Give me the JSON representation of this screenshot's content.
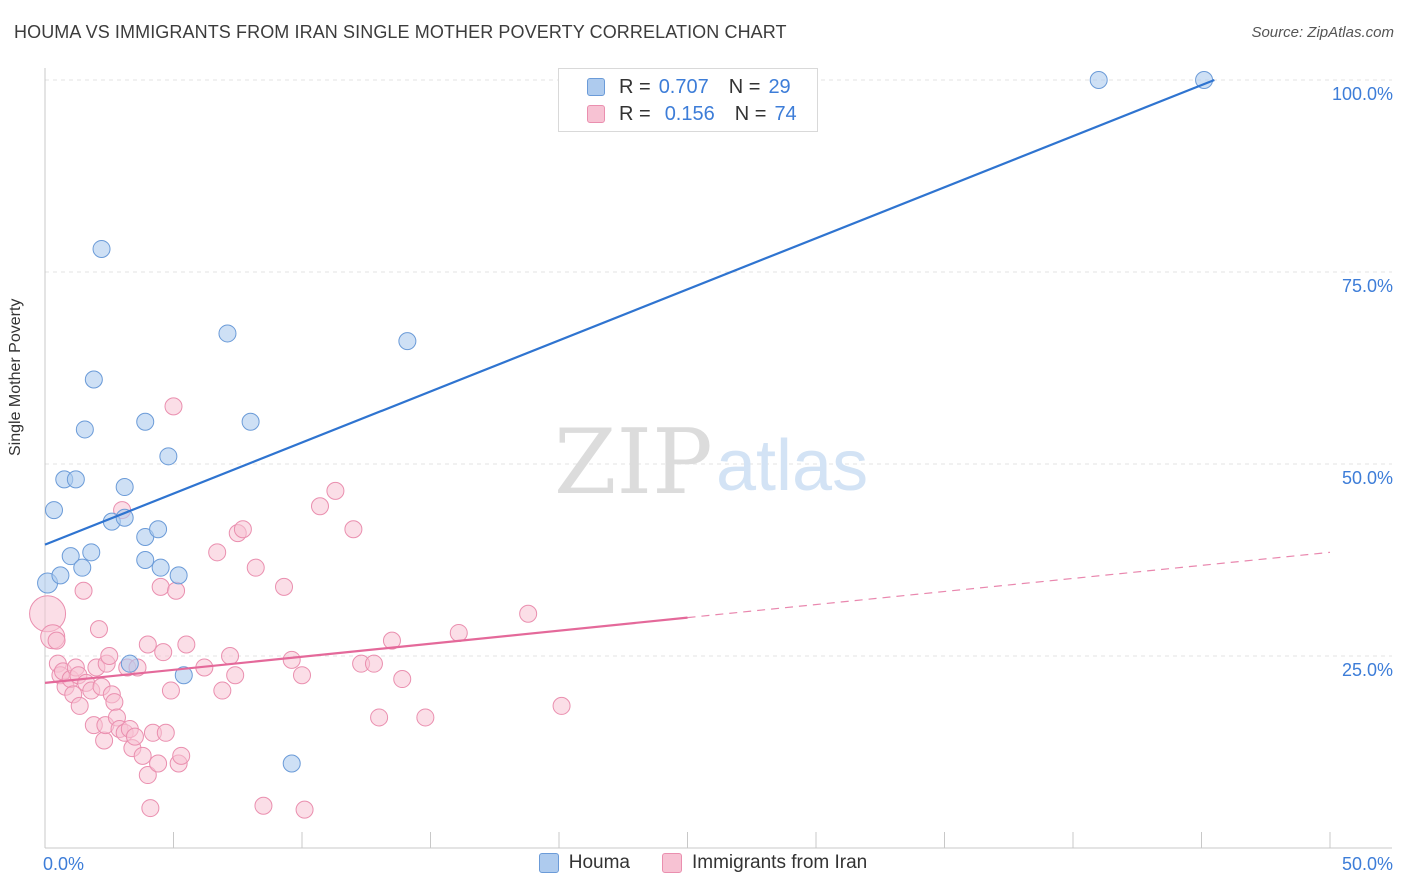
{
  "header": {
    "title": "HOUMA VS IMMIGRANTS FROM IRAN SINGLE MOTHER POVERTY CORRELATION CHART",
    "source": "Source: ZipAtlas.com"
  },
  "watermark": {
    "zip": "ZIP",
    "atlas": "atlas"
  },
  "legend": {
    "r_label": "R =",
    "n_label": "N =",
    "series": [
      {
        "name": "Houma",
        "r": "0.707",
        "n": "29"
      },
      {
        "name": "Immigrants from Iran",
        "r": "0.156",
        "n": "74"
      }
    ]
  },
  "colors": {
    "houma_fill": "#aecbee",
    "houma_stroke": "#6b9bd8",
    "houma_line": "#2f74d0",
    "iran_fill": "#f7c2d3",
    "iran_stroke": "#ea8faf",
    "iran_line": "#e4699a",
    "axis_text": "#3d7dd8"
  },
  "chart_data": {
    "type": "scatter",
    "title": "HOUMA VS IMMIGRANTS FROM IRAN SINGLE MOTHER POVERTY CORRELATION CHART",
    "xlabel": "",
    "ylabel": "Single Mother Poverty",
    "xlim": [
      0,
      50
    ],
    "ylim": [
      0,
      100
    ],
    "x_tick_labels": [
      "0.0%",
      "50.0%"
    ],
    "y_ticks": [
      25,
      50,
      75,
      100
    ],
    "y_tick_labels": [
      "25.0%",
      "50.0%",
      "75.0%",
      "100.0%"
    ],
    "grid": true,
    "legend_position": "top-center",
    "series": [
      {
        "name": "Houma",
        "r": 0.707,
        "n": 29,
        "trend": {
          "x0": 0,
          "y0": 39.5,
          "x1": 45.5,
          "y1": 100.0
        },
        "points": [
          [
            0.1,
            34.5
          ],
          [
            0.6,
            35.5
          ],
          [
            0.35,
            44
          ],
          [
            0.75,
            48
          ],
          [
            1.2,
            48
          ],
          [
            1.0,
            38
          ],
          [
            1.45,
            36.5
          ],
          [
            1.8,
            38.5
          ],
          [
            1.55,
            54.5
          ],
          [
            1.9,
            61
          ],
          [
            2.2,
            78
          ],
          [
            2.6,
            42.5
          ],
          [
            3.1,
            43
          ],
          [
            3.1,
            47
          ],
          [
            3.9,
            55.5
          ],
          [
            3.9,
            40.5
          ],
          [
            3.9,
            37.5
          ],
          [
            4.4,
            41.5
          ],
          [
            4.5,
            36.5
          ],
          [
            4.8,
            51
          ],
          [
            5.2,
            35.5
          ],
          [
            7.1,
            67
          ],
          [
            8.0,
            55.5
          ],
          [
            3.3,
            24
          ],
          [
            5.4,
            22.5
          ],
          [
            9.6,
            11
          ],
          [
            14.1,
            66
          ],
          [
            41,
            100
          ],
          [
            45.1,
            100
          ]
        ]
      },
      {
        "name": "Immigrants from Iran",
        "r": 0.156,
        "n": 74,
        "trend": {
          "x0": 0,
          "y0": 21.5,
          "x1": 25,
          "y1": 30.0,
          "dashed_to_x": 50,
          "dashed_to_y": 38.5
        },
        "points": [
          [
            0.1,
            30.5
          ],
          [
            0.3,
            27.5
          ],
          [
            0.45,
            27
          ],
          [
            0.5,
            24
          ],
          [
            0.6,
            22.5
          ],
          [
            0.8,
            21
          ],
          [
            0.7,
            23
          ],
          [
            1.0,
            22
          ],
          [
            1.1,
            20
          ],
          [
            1.2,
            23.5
          ],
          [
            1.3,
            22.5
          ],
          [
            1.35,
            18.5
          ],
          [
            1.5,
            33.5
          ],
          [
            1.6,
            21.5
          ],
          [
            1.8,
            20.5
          ],
          [
            1.9,
            16
          ],
          [
            2.0,
            23.5
          ],
          [
            2.1,
            28.5
          ],
          [
            2.2,
            21
          ],
          [
            2.3,
            14
          ],
          [
            2.35,
            16
          ],
          [
            2.4,
            24
          ],
          [
            2.5,
            25
          ],
          [
            2.6,
            20
          ],
          [
            2.7,
            19
          ],
          [
            2.8,
            17
          ],
          [
            2.9,
            15.5
          ],
          [
            3.0,
            44
          ],
          [
            3.1,
            15
          ],
          [
            3.2,
            23.5
          ],
          [
            3.3,
            15.5
          ],
          [
            3.4,
            13
          ],
          [
            3.6,
            23.5
          ],
          [
            3.8,
            12
          ],
          [
            4.0,
            26.5
          ],
          [
            4.0,
            9.5
          ],
          [
            4.2,
            15
          ],
          [
            4.4,
            11
          ],
          [
            4.5,
            34
          ],
          [
            4.6,
            25.5
          ],
          [
            4.7,
            15
          ],
          [
            4.9,
            20.5
          ],
          [
            5.0,
            57.5
          ],
          [
            5.1,
            33.5
          ],
          [
            5.2,
            11
          ],
          [
            5.3,
            12
          ],
          [
            5.5,
            26.5
          ],
          [
            6.2,
            23.5
          ],
          [
            6.7,
            38.5
          ],
          [
            6.9,
            20.5
          ],
          [
            7.2,
            25
          ],
          [
            7.4,
            22.5
          ],
          [
            7.5,
            41
          ],
          [
            7.7,
            41.5
          ],
          [
            8.2,
            36.5
          ],
          [
            8.5,
            5.5
          ],
          [
            9.3,
            34
          ],
          [
            9.6,
            24.5
          ],
          [
            10.0,
            22.5
          ],
          [
            10.1,
            5
          ],
          [
            10.7,
            44.5
          ],
          [
            11.3,
            46.5
          ],
          [
            12.3,
            24
          ],
          [
            12.0,
            41.5
          ],
          [
            12.8,
            24
          ],
          [
            13.0,
            17
          ],
          [
            13.5,
            27
          ],
          [
            13.9,
            22
          ],
          [
            14.8,
            17
          ],
          [
            16.1,
            28
          ],
          [
            18.8,
            30.5
          ],
          [
            20.1,
            18.5
          ],
          [
            4.1,
            5.2
          ],
          [
            3.5,
            14.5
          ]
        ]
      }
    ]
  }
}
